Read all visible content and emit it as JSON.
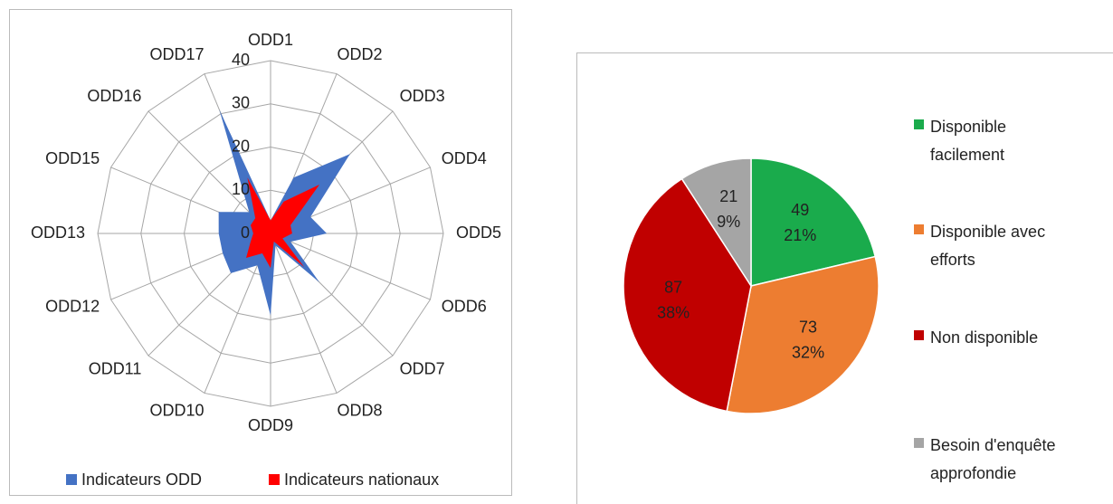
{
  "chart_data": [
    {
      "type": "radar",
      "categories": [
        "ODD1",
        "ODD2",
        "ODD3",
        "ODD4",
        "ODD5",
        "ODD6",
        "ODD7",
        "ODD8",
        "ODD9",
        "ODD10",
        "ODD11",
        "ODD12",
        "ODD13",
        "ODD15",
        "ODD16",
        "ODD17"
      ],
      "series": [
        {
          "name": "Indicateurs ODD",
          "color": "#4472c4",
          "values": [
            3,
            14,
            26,
            10,
            13,
            5,
            16,
            3,
            19,
            8,
            13,
            12,
            12,
            13,
            7,
            31
          ]
        },
        {
          "name": "Indicateurs nationaux",
          "color": "#ff0000",
          "values": [
            3,
            8,
            16,
            5,
            5,
            3,
            11,
            2,
            8,
            5,
            8,
            5,
            4,
            5,
            5,
            14
          ]
        }
      ],
      "ylim": [
        0,
        40
      ],
      "yticks": [
        0,
        10,
        20,
        30,
        40
      ],
      "grid": true,
      "legend": "bottom"
    },
    {
      "type": "pie",
      "categories": [
        "Disponible facilement",
        "Disponible avec efforts",
        "Non disponible",
        "Besoin d'enquête approfondie"
      ],
      "values": [
        49,
        73,
        87,
        21
      ],
      "percent_labels": [
        "21%",
        "32%",
        "38%",
        "9%"
      ],
      "colors": [
        "#1aab4c",
        "#ed7d31",
        "#c00000",
        "#a5a5a5"
      ],
      "legend": "right"
    }
  ]
}
